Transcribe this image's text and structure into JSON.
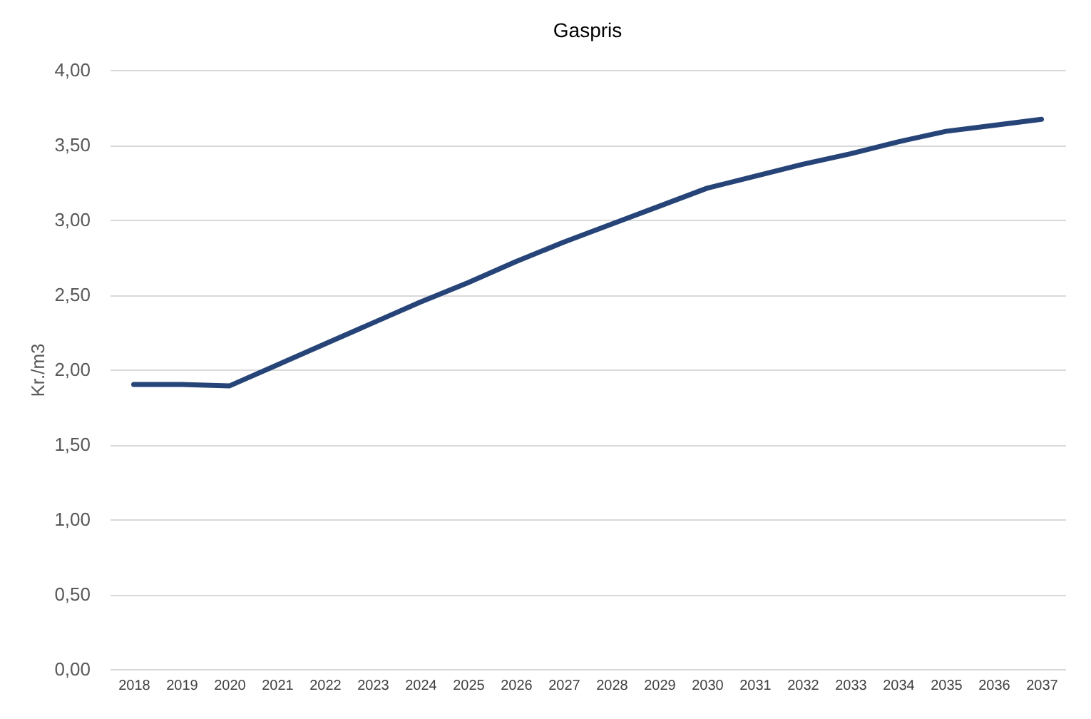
{
  "chart_data": {
    "type": "line",
    "title": "Gaspris",
    "ylabel": "Kr./m3",
    "categories": [
      "2018",
      "2019",
      "2020",
      "2021",
      "2022",
      "2023",
      "2024",
      "2025",
      "2026",
      "2027",
      "2028",
      "2029",
      "2030",
      "2031",
      "2032",
      "2033",
      "2034",
      "2035",
      "2036",
      "2037"
    ],
    "series": [
      {
        "color": "#264478",
        "values": [
          1.9,
          1.9,
          1.89,
          2.03,
          2.17,
          2.31,
          2.45,
          2.58,
          2.72,
          2.85,
          2.97,
          3.09,
          3.21,
          3.29,
          3.37,
          3.44,
          3.52,
          3.59,
          3.63,
          3.67
        ]
      }
    ],
    "ylim": [
      0,
      4
    ],
    "yticks": [
      {
        "value": 0,
        "label": "0,00"
      },
      {
        "value": 0.5,
        "label": "0,50"
      },
      {
        "value": 1,
        "label": "1,00"
      },
      {
        "value": 1.5,
        "label": "1,50"
      },
      {
        "value": 2,
        "label": "2,00"
      },
      {
        "value": 2.5,
        "label": "2,50"
      },
      {
        "value": 3,
        "label": "3,00"
      },
      {
        "value": 3.5,
        "label": "3,50"
      },
      {
        "value": 4,
        "label": "4,00"
      }
    ],
    "grid": "y",
    "legend": false,
    "marker": "none",
    "line_style": "solid"
  }
}
